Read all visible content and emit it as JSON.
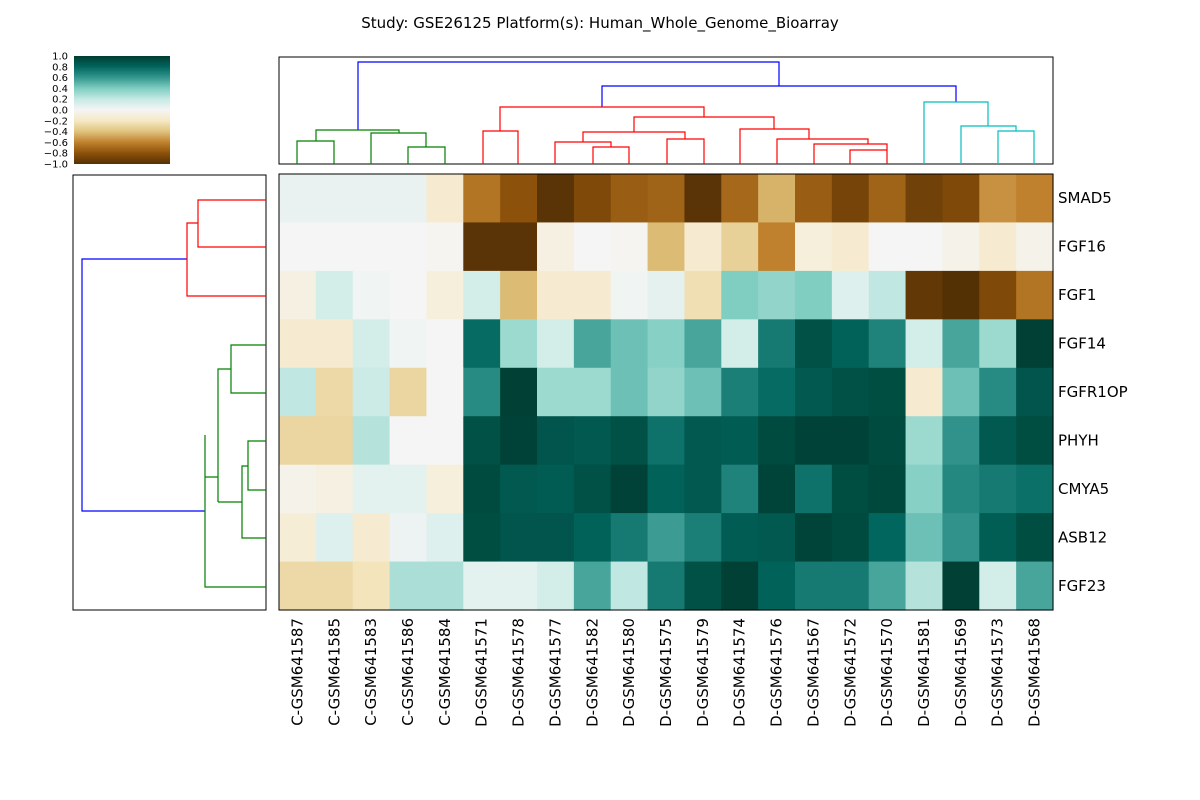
{
  "chart_data": {
    "type": "heatmap",
    "title": "Study: GSE26125 Platform(s): Human_Whole_Genome_Bioarray",
    "rows": [
      "SMAD5",
      "FGF16",
      "FGF1",
      "FGF14",
      "FGFR1OP",
      "PHYH",
      "CMYA5",
      "ASB12",
      "FGF23"
    ],
    "columns": [
      "C-GSM641587",
      "C-GSM641585",
      "C-GSM641583",
      "C-GSM641586",
      "C-GSM641584",
      "D-GSM641571",
      "D-GSM641578",
      "D-GSM641577",
      "D-GSM641582",
      "D-GSM641580",
      "D-GSM641575",
      "D-GSM641579",
      "D-GSM641574",
      "D-GSM641576",
      "D-GSM641567",
      "D-GSM641572",
      "D-GSM641570",
      "D-GSM641581",
      "D-GSM641569",
      "D-GSM641573",
      "D-GSM641568"
    ],
    "values": [
      [
        0.05,
        0.05,
        0.05,
        0.05,
        -0.15,
        -0.65,
        -0.8,
        -0.98,
        -0.85,
        -0.75,
        -0.72,
        -0.98,
        -0.7,
        -0.45,
        -0.75,
        -0.88,
        -0.72,
        -0.9,
        -0.85,
        -0.55,
        -0.6
      ],
      [
        0.0,
        0.0,
        0.0,
        0.0,
        -0.02,
        -0.98,
        -0.98,
        -0.08,
        0.0,
        -0.02,
        -0.42,
        -0.15,
        -0.32,
        -0.6,
        -0.1,
        -0.15,
        0.0,
        0.0,
        -0.05,
        -0.15,
        -0.05
      ],
      [
        -0.08,
        0.15,
        0.02,
        0.0,
        -0.1,
        0.15,
        -0.42,
        -0.15,
        -0.15,
        0.02,
        0.07,
        -0.25,
        0.4,
        0.35,
        0.4,
        0.1,
        0.22,
        -0.95,
        -1.0,
        -0.85,
        -0.65
      ],
      [
        -0.15,
        -0.15,
        0.15,
        0.02,
        0.0,
        0.78,
        0.32,
        0.15,
        0.55,
        0.45,
        0.38,
        0.55,
        0.15,
        0.72,
        0.9,
        0.82,
        0.68,
        0.15,
        0.55,
        0.32,
        0.98
      ],
      [
        0.22,
        -0.28,
        0.18,
        -0.3,
        0.0,
        0.65,
        0.98,
        0.32,
        0.32,
        0.45,
        0.35,
        0.45,
        0.7,
        0.78,
        0.86,
        0.9,
        0.92,
        -0.15,
        0.45,
        0.65,
        0.88
      ],
      [
        -0.3,
        -0.3,
        0.25,
        0.0,
        0.0,
        0.9,
        0.97,
        0.88,
        0.86,
        0.9,
        0.75,
        0.86,
        0.85,
        0.93,
        0.97,
        0.97,
        0.93,
        0.32,
        0.62,
        0.86,
        0.92
      ],
      [
        -0.05,
        -0.08,
        0.08,
        0.08,
        -0.1,
        0.93,
        0.86,
        0.85,
        0.9,
        0.97,
        0.82,
        0.86,
        0.68,
        0.96,
        0.75,
        0.92,
        0.95,
        0.38,
        0.66,
        0.72,
        0.76
      ],
      [
        -0.12,
        0.1,
        -0.15,
        0.04,
        0.1,
        0.92,
        0.88,
        0.88,
        0.82,
        0.72,
        0.58,
        0.7,
        0.85,
        0.86,
        0.96,
        0.93,
        0.8,
        0.45,
        0.62,
        0.84,
        0.92
      ],
      [
        -0.28,
        -0.28,
        -0.22,
        0.28,
        0.28,
        0.08,
        0.08,
        0.15,
        0.55,
        0.22,
        0.72,
        0.9,
        0.98,
        0.82,
        0.72,
        0.72,
        0.55,
        0.25,
        0.98,
        0.15,
        0.55
      ]
    ],
    "colormap": "BrBG",
    "vmin": -1.0,
    "vmax": 1.0,
    "colorbar_ticks": [
      "1.0",
      "0.8",
      "0.6",
      "0.4",
      "0.2",
      "0.0",
      "−0.2",
      "−0.4",
      "−0.6",
      "−0.8",
      "−1.0"
    ],
    "dendrogram_colors": {
      "root": "#0000ff",
      "green": "#008000",
      "red": "#ff0000",
      "cyan": "#00bfbf"
    }
  }
}
